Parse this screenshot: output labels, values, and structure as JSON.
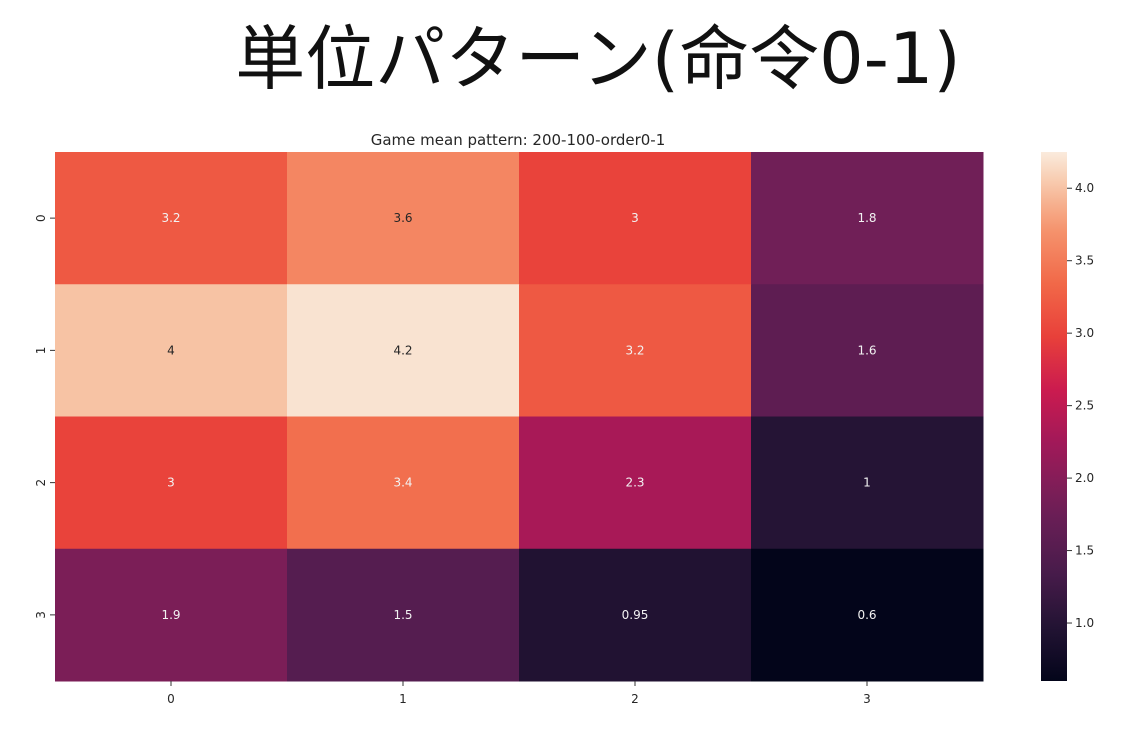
{
  "slide": {
    "title": "単位パターン(命令0-1)"
  },
  "chart_data": {
    "type": "heatmap",
    "title": "Game mean pattern: 200-100-order0-1",
    "x_categories": [
      "0",
      "1",
      "2",
      "3"
    ],
    "y_categories": [
      "0",
      "1",
      "2",
      "3"
    ],
    "values": [
      [
        3.2,
        3.6,
        3,
        1.8
      ],
      [
        4,
        4.2,
        3.2,
        1.6
      ],
      [
        3,
        3.4,
        2.3,
        1
      ],
      [
        1.9,
        1.5,
        0.95,
        0.6
      ]
    ],
    "cell_labels": [
      [
        "3.2",
        "3.6",
        "3",
        "1.8"
      ],
      [
        "4",
        "4.2",
        "3.2",
        "1.6"
      ],
      [
        "3",
        "3.4",
        "2.3",
        "1"
      ],
      [
        "1.9",
        "1.5",
        "0.95",
        "0.6"
      ]
    ],
    "colormap": "rocket",
    "colorbar": {
      "range": [
        0.6,
        4.25
      ],
      "ticks": [
        1.0,
        1.5,
        2.0,
        2.5,
        3.0,
        3.5,
        4.0
      ],
      "tick_labels": [
        "1.0",
        "1.5",
        "2.0",
        "2.5",
        "3.0",
        "3.5",
        "4.0"
      ]
    }
  }
}
